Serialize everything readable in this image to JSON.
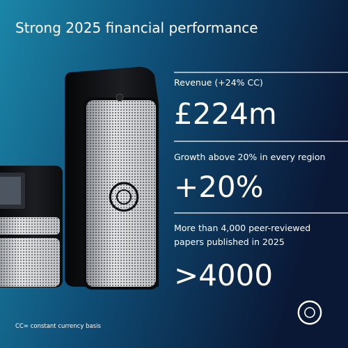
{
  "title": "Strong 2025 financial performance",
  "metrics": [
    {
      "caption": [
        "Revenue (+24% CC)"
      ],
      "figure": "£224m"
    },
    {
      "caption": [
        "Growth above 20% in every region"
      ],
      "figure": "+20%"
    },
    {
      "caption": [
        "More than 4,000 peer-reviewed",
        "papers published in 2025"
      ],
      "figure": ">4000"
    }
  ],
  "footnote": "CC= constant currency basis"
}
